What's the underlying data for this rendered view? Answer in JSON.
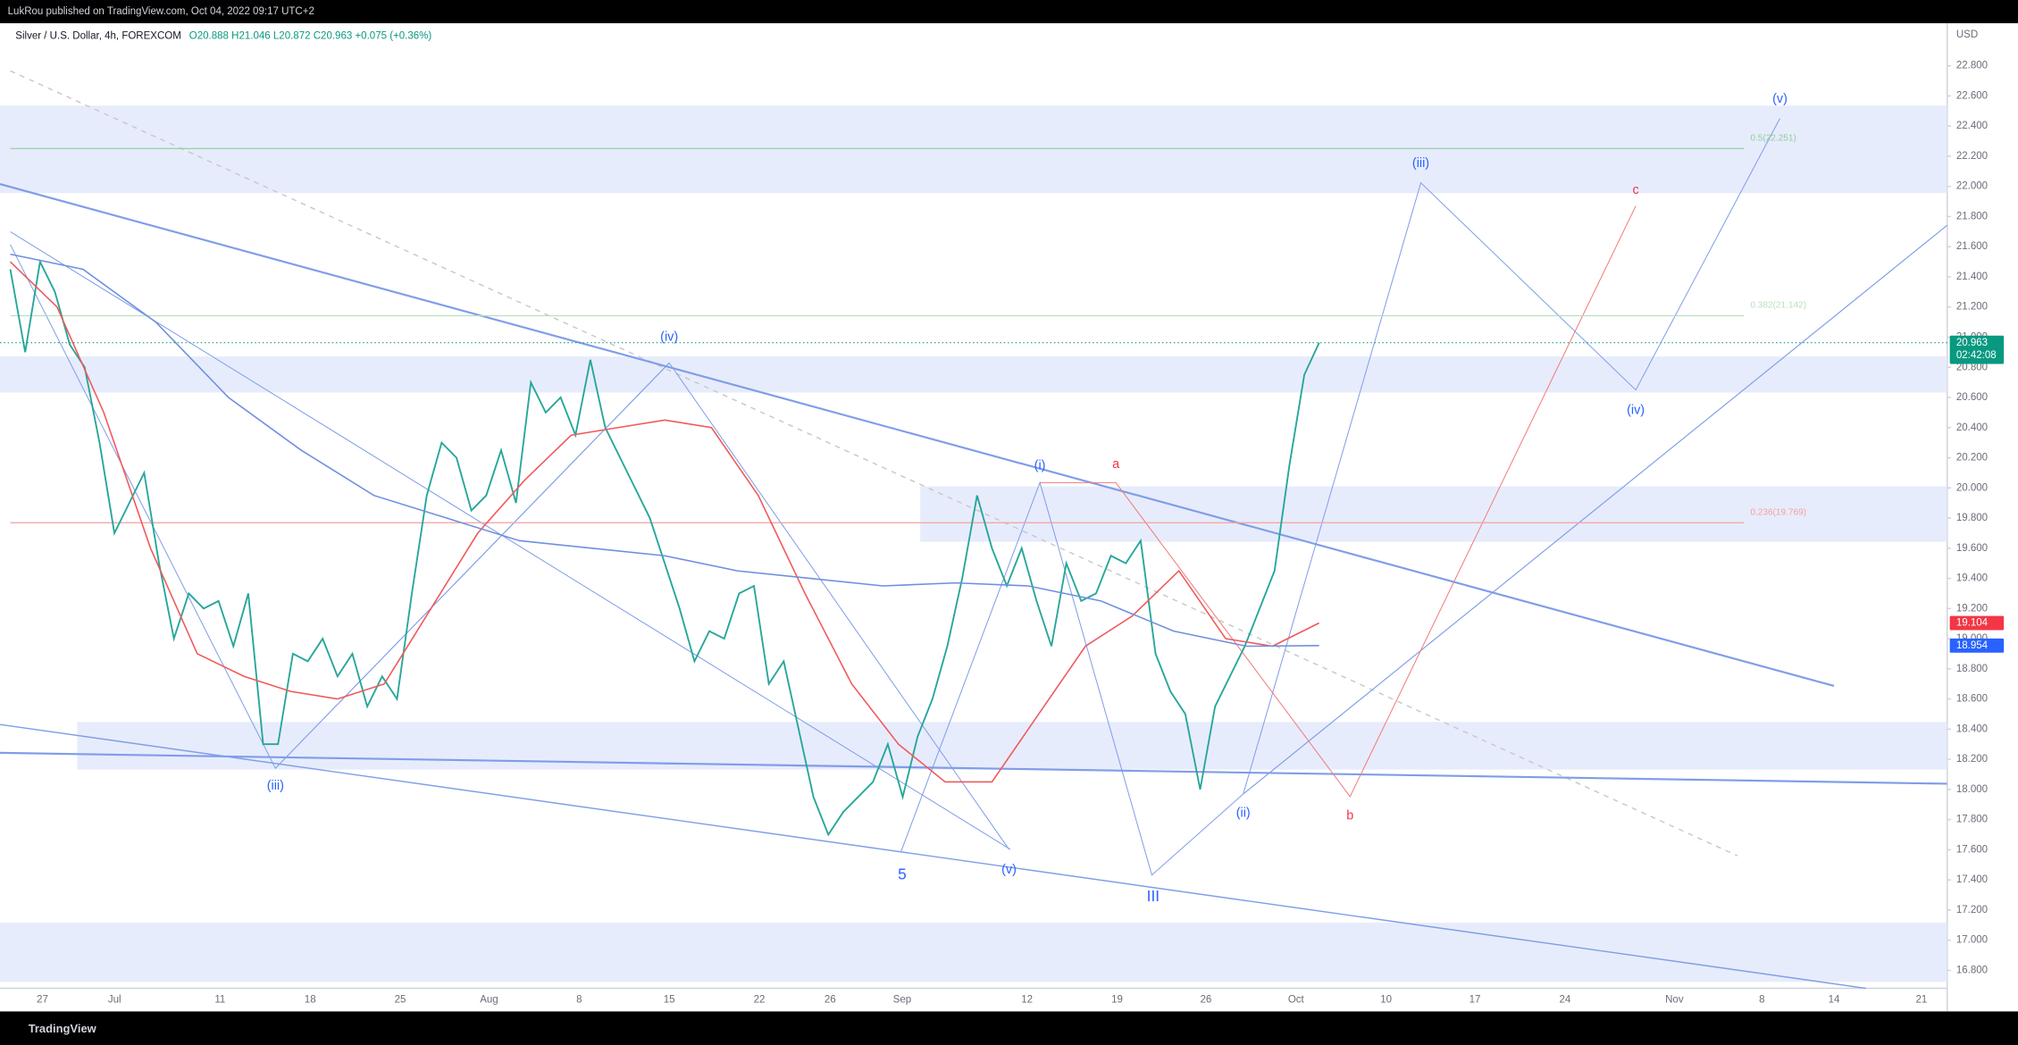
{
  "chart_data": {
    "type": "line",
    "publisher": "LukRou published on TradingView.com, Oct 04, 2022 09:17 UTC+2",
    "title": "Silver / U.S. Dollar, 4h, FOREXCOM",
    "subtitle": "O20.888 H21.046 L20.872 C20.963 +0.075 (+0.36%)",
    "y_axis_label": "USD",
    "brand": "TradingView",
    "ylim": [
      16.681,
      23.082
    ],
    "yticks": [
      {
        "value": 16.8,
        "label": "16.800"
      },
      {
        "value": 17.0,
        "label": "17.000"
      },
      {
        "value": 17.2,
        "label": "17.200"
      },
      {
        "value": 17.4,
        "label": "17.400"
      },
      {
        "value": 17.6,
        "label": "17.600"
      },
      {
        "value": 17.8,
        "label": "17.800"
      },
      {
        "value": 18.0,
        "label": "18.000"
      },
      {
        "value": 18.2,
        "label": "18.200"
      },
      {
        "value": 18.4,
        "label": "18.400"
      },
      {
        "value": 18.6,
        "label": "18.600"
      },
      {
        "value": 18.8,
        "label": "18.800"
      },
      {
        "value": 19.0,
        "label": "19.000"
      },
      {
        "value": 19.2,
        "label": "19.200"
      },
      {
        "value": 19.4,
        "label": "19.400"
      },
      {
        "value": 19.6,
        "label": "19.600"
      },
      {
        "value": 19.8,
        "label": "19.800"
      },
      {
        "value": 20.0,
        "label": "20.000"
      },
      {
        "value": 20.2,
        "label": "20.200"
      },
      {
        "value": 20.4,
        "label": "20.400"
      },
      {
        "value": 20.6,
        "label": "20.600"
      },
      {
        "value": 20.8,
        "label": "20.800"
      },
      {
        "value": 21.0,
        "label": "21.000"
      },
      {
        "value": 21.2,
        "label": "21.200"
      },
      {
        "value": 21.4,
        "label": "21.400"
      },
      {
        "value": 21.6,
        "label": "21.600"
      },
      {
        "value": 21.8,
        "label": "21.800"
      },
      {
        "value": 22.0,
        "label": "22.000"
      },
      {
        "value": 22.2,
        "label": "22.200"
      },
      {
        "value": 22.4,
        "label": "22.400"
      },
      {
        "value": 22.6,
        "label": "22.600"
      },
      {
        "value": 22.8,
        "label": "22.800"
      }
    ],
    "x_labels": [
      "27",
      "Jul",
      "11",
      "18",
      "25",
      "Aug",
      "8",
      "15",
      "22",
      "26",
      "Sep",
      "12",
      "19",
      "26",
      "Oct",
      "10",
      "17",
      "24",
      "Nov",
      "8",
      "14",
      "21"
    ],
    "series": [
      {
        "color": "#26a69a",
        "values": [
          21.45,
          20.9,
          21.5,
          21.3,
          20.95,
          20.8,
          20.3,
          19.7,
          19.9,
          20.1,
          19.5,
          19.0,
          19.3,
          19.2,
          19.25,
          18.95,
          19.3,
          18.3,
          18.3,
          18.9,
          18.85,
          19.0,
          18.75,
          18.9,
          18.55,
          18.75,
          18.6,
          19.3,
          19.95,
          20.3,
          20.2,
          19.85,
          19.95,
          20.25,
          19.9,
          20.7,
          20.5,
          20.6,
          20.35,
          20.85,
          20.4,
          20.2,
          20.0,
          19.8,
          19.5,
          19.2,
          18.85,
          19.05,
          19.0,
          19.3,
          19.35,
          18.7,
          18.85,
          18.4,
          17.95,
          17.7,
          17.85,
          17.95,
          18.05,
          18.3,
          17.95,
          18.35,
          18.6,
          18.95,
          19.4,
          19.95,
          19.6,
          19.35,
          19.6,
          19.25,
          18.95,
          19.5,
          19.25,
          19.3,
          19.55,
          19.5,
          19.65,
          18.9,
          18.65,
          18.5,
          18.0,
          18.55,
          18.75,
          18.95,
          19.2,
          19.45,
          20.15,
          20.75,
          20.963
        ]
      },
      {
        "color": "#f0595b",
        "values": [
          21.5,
          21.2,
          20.5,
          19.6,
          18.9,
          18.75,
          18.65,
          18.6,
          18.7,
          19.2,
          19.7,
          20.05,
          20.35,
          20.4,
          20.45,
          20.4,
          19.95,
          19.3,
          18.7,
          18.3,
          18.05,
          18.05,
          18.5,
          18.95,
          19.15,
          19.45,
          19.0,
          18.95,
          19.104
        ]
      },
      {
        "color": "#6f8fe0",
        "values": [
          21.55,
          21.45,
          21.1,
          20.6,
          20.25,
          19.95,
          19.8,
          19.65,
          19.6,
          19.55,
          19.45,
          19.4,
          19.35,
          19.37,
          19.35,
          19.25,
          19.05,
          18.95,
          18.954
        ]
      }
    ],
    "price_tags": [
      {
        "value": 20.963,
        "color": "#089981",
        "countdown": "02:42:08"
      },
      {
        "value": 19.104,
        "color": "#f23645"
      },
      {
        "value": 18.954,
        "color": "#2962ff"
      }
    ],
    "fib_levels": [
      {
        "label": "0.5(22.251)",
        "level": 22.251,
        "color": "#8fcf9b"
      },
      {
        "label": "0.382(21.142)",
        "level": 21.142,
        "color": "#b9e0bf"
      },
      {
        "label": "0.236(19.769)",
        "level": 19.769,
        "color": "#f3a0a0"
      }
    ],
    "annotations": [
      {
        "text": "(iii)",
        "color": "#2962ff"
      },
      {
        "text": "(iv)",
        "color": "#2962ff"
      },
      {
        "text": "5",
        "color": "#2962ff"
      },
      {
        "text": "(v)",
        "color": "#2962ff"
      },
      {
        "text": "(i)",
        "color": "#2962ff"
      },
      {
        "text": "a",
        "color": "#f23645"
      },
      {
        "text": "III",
        "color": "#2962ff"
      },
      {
        "text": "(ii)",
        "color": "#2962ff"
      },
      {
        "text": "b",
        "color": "#f23645"
      },
      {
        "text": "(iii)",
        "color": "#2962ff"
      },
      {
        "text": "c",
        "color": "#f23645"
      },
      {
        "text": "(iv)",
        "color": "#2962ff"
      },
      {
        "text": "(v)",
        "color": "#2962ff"
      }
    ]
  }
}
